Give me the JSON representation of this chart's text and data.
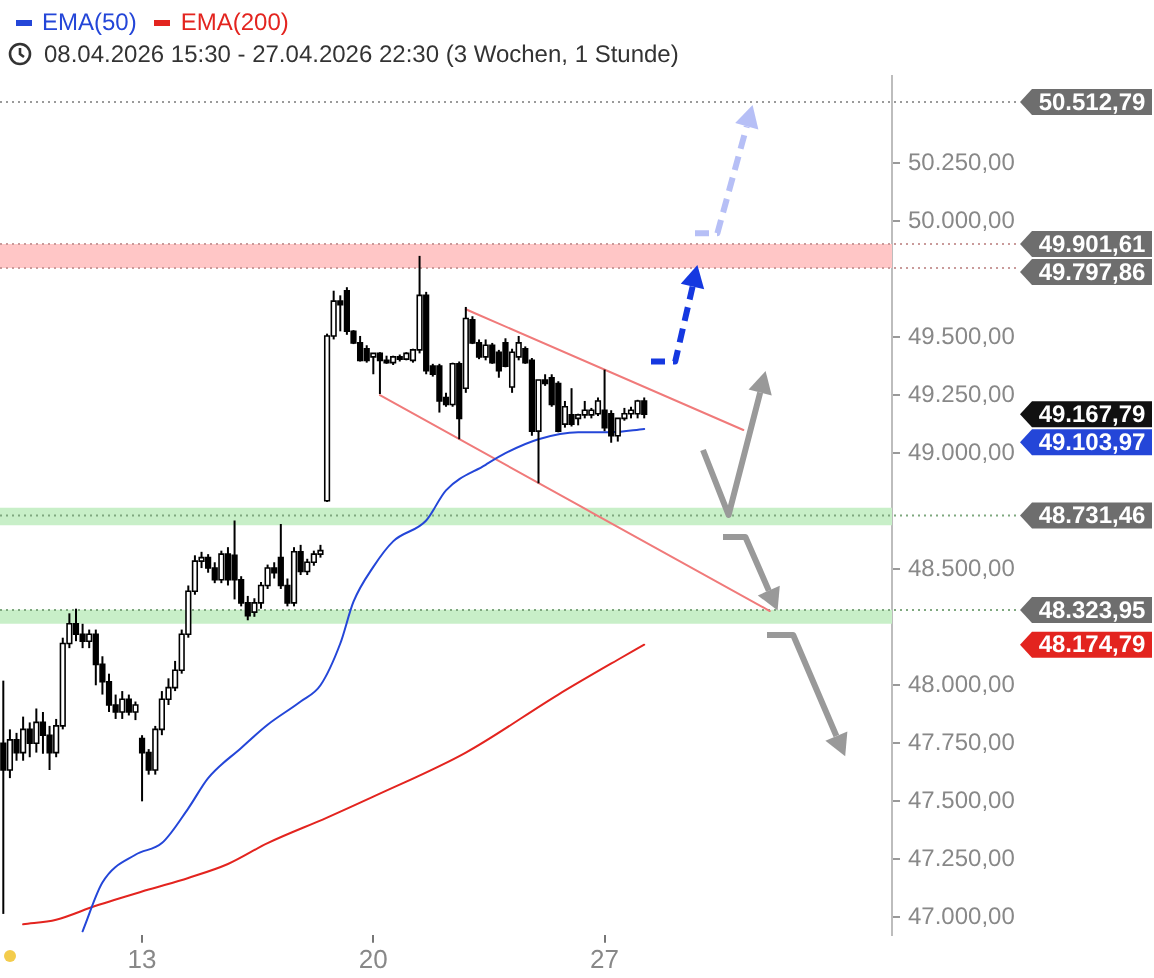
{
  "chart_data": {
    "type": "candlestick",
    "subtitle": "08.04.2026 15:30 - 27.04.2026 22:30  (3 Wochen, 1 Stunde)",
    "categories": [
      null,
      null,
      null,
      null,
      null,
      null,
      null,
      null,
      null,
      null,
      null,
      null,
      null,
      null,
      null,
      null,
      null,
      null,
      null,
      null,
      null,
      "13",
      null,
      null,
      null,
      null,
      null,
      null,
      null,
      null,
      null,
      null,
      null,
      null,
      null,
      null,
      null,
      null,
      null,
      null,
      null,
      null,
      null,
      null,
      null,
      null,
      null,
      null,
      null,
      null,
      null,
      null,
      null,
      null,
      null,
      null,
      "20",
      null,
      null,
      null,
      null,
      null,
      null,
      null,
      null,
      null,
      null,
      null,
      null,
      null,
      null,
      null,
      null,
      null,
      null,
      null,
      null,
      null,
      null,
      null,
      null,
      null,
      null,
      null,
      null,
      null,
      null,
      null,
      null,
      null,
      null,
      "27",
      null,
      null,
      null,
      null,
      null,
      null,
      null,
      null,
      null,
      null,
      null,
      null,
      null,
      null,
      null,
      null,
      null,
      null,
      null,
      null,
      null,
      null,
      null,
      null,
      null,
      null,
      null,
      null,
      null,
      null,
      null,
      null,
      null,
      null,
      null,
      null,
      null,
      null,
      null,
      null,
      null,
      null,
      null
    ],
    "ohlc": [
      [
        47750,
        48020,
        47015,
        47635
      ],
      [
        47635,
        47810,
        47600,
        47765
      ],
      [
        47765,
        47795,
        47675,
        47710
      ],
      [
        47710,
        47865,
        47675,
        47810
      ],
      [
        47810,
        47840,
        47690,
        47750
      ],
      [
        47750,
        47900,
        47710,
        47840
      ],
      [
        47840,
        47885,
        47705,
        47785
      ],
      [
        47785,
        47825,
        47635,
        47710
      ],
      [
        47710,
        47855,
        47690,
        47825
      ],
      [
        47825,
        48205,
        47810,
        48180
      ],
      [
        48180,
        48310,
        48160,
        48265
      ],
      [
        48265,
        48330,
        48190,
        48220
      ],
      [
        48220,
        48265,
        48160,
        48190
      ],
      [
        48190,
        48240,
        48160,
        48220
      ],
      [
        48220,
        48240,
        48000,
        48090
      ],
      [
        48090,
        48125,
        47960,
        48015
      ],
      [
        48015,
        48050,
        47885,
        47915
      ],
      [
        47915,
        47960,
        47855,
        47885
      ],
      [
        47885,
        47975,
        47855,
        47940
      ],
      [
        47940,
        47960,
        47870,
        47885
      ],
      [
        47885,
        47930,
        47850,
        47915
      ],
      [
        47770,
        47785,
        47500,
        47710
      ],
      [
        47710,
        47725,
        47615,
        47635
      ],
      [
        47635,
        47825,
        47615,
        47810
      ],
      [
        47810,
        47975,
        47785,
        47940
      ],
      [
        47940,
        48030,
        47915,
        47990
      ],
      [
        47990,
        48105,
        47975,
        48065
      ],
      [
        48065,
        48240,
        48050,
        48220
      ],
      [
        48220,
        48430,
        48205,
        48405
      ],
      [
        48405,
        48560,
        48390,
        48535
      ],
      [
        48535,
        48575,
        48505,
        48550
      ],
      [
        48550,
        48565,
        48485,
        48505
      ],
      [
        48505,
        48530,
        48440,
        48455
      ],
      [
        48455,
        48580,
        48440,
        48565
      ],
      [
        48565,
        48595,
        48430,
        48455
      ],
      [
        48560,
        48710,
        48370,
        48455
      ],
      [
        48455,
        48470,
        48340,
        48355
      ],
      [
        48355,
        48385,
        48280,
        48300
      ],
      [
        48315,
        48375,
        48295,
        48355
      ],
      [
        48355,
        48445,
        48330,
        48430
      ],
      [
        48430,
        48520,
        48415,
        48505
      ],
      [
        48505,
        48530,
        48460,
        48485
      ],
      [
        48550,
        48695,
        48415,
        48430
      ],
      [
        48430,
        48460,
        48340,
        48355
      ],
      [
        48355,
        48595,
        48340,
        48575
      ],
      [
        48575,
        48605,
        48475,
        48490
      ],
      [
        48490,
        48545,
        48475,
        48530
      ],
      [
        48530,
        48580,
        48515,
        48565
      ],
      [
        48565,
        48605,
        48550,
        48580
      ],
      [
        48795,
        49515,
        48790,
        49505
      ],
      [
        49505,
        49700,
        49490,
        49655
      ],
      [
        49655,
        49680,
        49525,
        49640
      ],
      [
        49700,
        49715,
        49510,
        49525
      ],
      [
        49525,
        49530,
        49470,
        49475
      ],
      [
        49475,
        49505,
        49395,
        49400
      ],
      [
        49450,
        49465,
        49390,
        49400
      ],
      [
        49415,
        49430,
        49340,
        49430
      ],
      [
        49430,
        49435,
        49255,
        49400
      ],
      [
        49400,
        49420,
        49385,
        49390
      ],
      [
        49390,
        49420,
        49380,
        49415
      ],
      [
        49415,
        49425,
        49395,
        49405
      ],
      [
        49405,
        49435,
        49400,
        49430
      ],
      [
        49400,
        49450,
        49390,
        49445
      ],
      [
        49445,
        49850,
        49430,
        49680
      ],
      [
        49680,
        49695,
        49340,
        49355
      ],
      [
        49375,
        49385,
        49330,
        49340
      ],
      [
        49375,
        49385,
        49175,
        49225
      ],
      [
        49240,
        49260,
        49200,
        49210
      ],
      [
        49210,
        49390,
        49200,
        49385
      ],
      [
        49385,
        49395,
        49060,
        49150
      ],
      [
        49280,
        49630,
        49260,
        49580
      ],
      [
        49575,
        49590,
        49470,
        49475
      ],
      [
        49475,
        49490,
        49405,
        49415
      ],
      [
        49415,
        49490,
        49400,
        49465
      ],
      [
        49465,
        49475,
        49385,
        49390
      ],
      [
        49435,
        49445,
        49325,
        49355
      ],
      [
        49475,
        49495,
        49370,
        49375
      ],
      [
        49285,
        49450,
        49260,
        49435
      ],
      [
        49415,
        49505,
        49400,
        49475
      ],
      [
        49450,
        49460,
        49385,
        49390
      ],
      [
        49400,
        49410,
        49075,
        49095
      ],
      [
        49095,
        49315,
        48870,
        49315
      ],
      [
        49315,
        49340,
        49290,
        49300
      ],
      [
        49325,
        49340,
        49200,
        49210
      ],
      [
        49300,
        49310,
        49090,
        49095
      ],
      [
        49125,
        49225,
        49110,
        49200
      ],
      [
        49165,
        49280,
        49115,
        49125
      ],
      [
        49150,
        49170,
        49120,
        49165
      ],
      [
        49165,
        49225,
        49150,
        49185
      ],
      [
        49165,
        49195,
        49150,
        49185
      ],
      [
        49170,
        49240,
        49160,
        49225
      ],
      [
        49185,
        49360,
        49095,
        49110
      ],
      [
        49170,
        49185,
        49045,
        49075
      ],
      [
        49075,
        49150,
        49050,
        49150
      ],
      [
        49150,
        49195,
        49140,
        49170
      ],
      [
        49170,
        49200,
        49150,
        49185
      ],
      [
        49170,
        49230,
        49150,
        49225
      ],
      [
        49225,
        49240,
        49150,
        49167.79
      ],
      null,
      null,
      null,
      null,
      null,
      null,
      null,
      null,
      null,
      null,
      null,
      null,
      null,
      null,
      null,
      null,
      null,
      null,
      null,
      null,
      null,
      null,
      null,
      null,
      null,
      null,
      null,
      null,
      null,
      null,
      null,
      null,
      null,
      null,
      null,
      null,
      null
    ],
    "series": [
      {
        "name": "EMA(50)",
        "type": "line",
        "color": "#2446d8",
        "values": [
          null,
          null,
          null,
          null,
          null,
          null,
          null,
          null,
          null,
          null,
          null,
          null,
          46940,
          null,
          null,
          47150,
          null,
          null,
          null,
          null,
          47270,
          null,
          null,
          null,
          47320,
          null,
          null,
          null,
          47470,
          null,
          null,
          47600,
          null,
          null,
          null,
          null,
          47730,
          null,
          null,
          null,
          47830,
          null,
          null,
          null,
          null,
          47930,
          null,
          null,
          48000,
          null,
          null,
          48180,
          null,
          48360,
          null,
          null,
          48510,
          null,
          null,
          48620,
          null,
          null,
          null,
          null,
          48710,
          null,
          null,
          48840,
          null,
          null,
          null,
          null,
          null,
          48950,
          null,
          null,
          49000,
          null,
          null,
          null,
          null,
          49060,
          null,
          null,
          null,
          null,
          null,
          49090,
          null,
          null,
          null,
          null,
          49090,
          null,
          null,
          null,
          null,
          49103.97,
          null,
          null,
          null,
          null,
          null,
          null,
          null,
          null,
          null,
          null,
          null,
          null,
          null,
          null,
          null,
          null,
          null,
          null,
          null,
          null,
          null,
          null,
          null,
          null,
          null,
          null,
          null,
          null,
          null,
          null,
          null,
          null,
          null,
          null,
          null,
          null,
          null
        ]
      },
      {
        "name": "EMA(200)",
        "type": "line",
        "color": "#e3241f",
        "values": [
          null,
          null,
          null,
          46970,
          null,
          null,
          null,
          null,
          46990,
          null,
          null,
          null,
          null,
          null,
          47050,
          null,
          null,
          null,
          null,
          null,
          null,
          null,
          47120,
          null,
          null,
          null,
          null,
          null,
          47170,
          null,
          null,
          null,
          null,
          null,
          47230,
          null,
          null,
          null,
          null,
          null,
          47320,
          null,
          null,
          null,
          null,
          null,
          null,
          null,
          null,
          47430,
          null,
          null,
          null,
          null,
          null,
          null,
          47520,
          null,
          null,
          null,
          null,
          null,
          null,
          null,
          null,
          null,
          null,
          null,
          null,
          null,
          47710,
          null,
          null,
          null,
          null,
          null,
          null,
          null,
          null,
          null,
          null,
          null,
          null,
          null,
          47960,
          null,
          null,
          null,
          null,
          null,
          null,
          null,
          null,
          48110,
          null,
          null,
          null,
          48174.79,
          null,
          null,
          null,
          null,
          null,
          null,
          null,
          null,
          null,
          null,
          null,
          null,
          null,
          null,
          null,
          null,
          null,
          null,
          null,
          null,
          null,
          null,
          null,
          null,
          null,
          null,
          null,
          null,
          null,
          null,
          null,
          null,
          null,
          null,
          null,
          null,
          null
        ]
      },
      {
        "type": "line",
        "color": "#f07a7a",
        "values": [
          null,
          null,
          null,
          null,
          null,
          null,
          null,
          null,
          null,
          null,
          null,
          null,
          null,
          null,
          null,
          null,
          null,
          null,
          null,
          null,
          null,
          null,
          null,
          null,
          null,
          null,
          null,
          null,
          null,
          null,
          null,
          null,
          null,
          null,
          null,
          null,
          null,
          null,
          null,
          null,
          null,
          null,
          null,
          null,
          null,
          null,
          null,
          null,
          null,
          null,
          null,
          null,
          null,
          null,
          null,
          null,
          null,
          null,
          null,
          null,
          null,
          null,
          null,
          null,
          null,
          null,
          null,
          null,
          null,
          null,
          49620,
          null,
          null,
          null,
          null,
          null,
          null,
          null,
          null,
          null,
          null,
          null,
          null,
          null,
          null,
          null,
          null,
          null,
          null,
          null,
          null,
          null,
          null,
          null,
          null,
          null,
          null,
          null,
          null,
          null,
          null,
          null,
          null,
          null,
          null,
          null,
          null,
          null,
          null,
          null,
          null,
          null,
          49100,
          null,
          null,
          null,
          null,
          null,
          null,
          null,
          null,
          null,
          null,
          null,
          null,
          null,
          null,
          null,
          null,
          null,
          null,
          null,
          null,
          null,
          null
        ]
      },
      {
        "type": "line",
        "color": "#f07a7a",
        "values": [
          null,
          null,
          null,
          null,
          null,
          null,
          null,
          null,
          null,
          null,
          null,
          null,
          null,
          null,
          null,
          null,
          null,
          null,
          null,
          null,
          null,
          null,
          null,
          null,
          null,
          null,
          null,
          null,
          null,
          null,
          null,
          null,
          null,
          null,
          null,
          null,
          null,
          null,
          null,
          null,
          null,
          null,
          null,
          null,
          null,
          null,
          null,
          null,
          null,
          null,
          null,
          null,
          null,
          null,
          null,
          null,
          null,
          49250,
          null,
          null,
          null,
          null,
          null,
          null,
          null,
          null,
          null,
          null,
          null,
          null,
          null,
          null,
          null,
          null,
          null,
          null,
          null,
          null,
          null,
          null,
          null,
          null,
          null,
          null,
          null,
          null,
          null,
          null,
          null,
          null,
          null,
          null,
          null,
          null,
          null,
          null,
          null,
          null,
          null,
          null,
          null,
          null,
          null,
          null,
          null,
          null,
          null,
          null,
          null,
          null,
          null,
          null,
          null,
          null,
          null,
          null,
          48320,
          null,
          null,
          null,
          null,
          null,
          null,
          null,
          null,
          null,
          null,
          null,
          null,
          null,
          null,
          null,
          null,
          null,
          null
        ]
      }
    ],
    "ylim": [
      46925,
      50625
    ],
    "yticks": [
      {
        "value": 47000,
        "label": "47.000,00"
      },
      {
        "value": 47250,
        "label": "47.250,00"
      },
      {
        "value": 47500,
        "label": "47.500,00"
      },
      {
        "value": 47750,
        "label": "47.750,00"
      },
      {
        "value": 48000,
        "label": "48.000,00"
      },
      {
        "value": 48500,
        "label": "48.500,00"
      },
      {
        "value": 49000,
        "label": "49.000,00"
      },
      {
        "value": 49250,
        "label": "49.250,00"
      },
      {
        "value": 49500,
        "label": "49.500,00"
      },
      {
        "value": 50000,
        "label": "50.000,00"
      },
      {
        "value": 50250,
        "label": "50.250,00"
      }
    ],
    "bands": [
      {
        "axis": "y",
        "from": 49797.86,
        "to": 49901.61,
        "color": "#ffc6c6"
      },
      {
        "axis": "y",
        "from": 48690,
        "to": 48765,
        "color": "#c8efc8"
      },
      {
        "axis": "y",
        "from": 48265,
        "to": 48325,
        "color": "#c8efc8"
      }
    ],
    "ref_lines": [
      {
        "axis": "y",
        "value": 50512.79,
        "label": "50.512,79",
        "color": "#9a9a9a",
        "line_style": "dotted"
      },
      {
        "axis": "y",
        "value": 49901.61,
        "label": "49.901,61",
        "color": "#c99a9a",
        "line_style": "dotted"
      },
      {
        "axis": "y",
        "value": 49797.86,
        "label": "49.797,86",
        "color": "#c99a9a",
        "line_style": "dotted"
      },
      {
        "axis": "y",
        "value": 48731.46,
        "label": "48.731,46",
        "color": "#7fa87f",
        "line_style": "dotted"
      },
      {
        "axis": "y",
        "value": 48323.95,
        "label": "48.323,95",
        "color": "#7fa87f",
        "line_style": "dotted"
      }
    ],
    "annotations": [
      "49.167,79",
      "49.103,97",
      "48.174,79"
    ],
    "legend": "top left",
    "marker": "none",
    "grid": false
  }
}
